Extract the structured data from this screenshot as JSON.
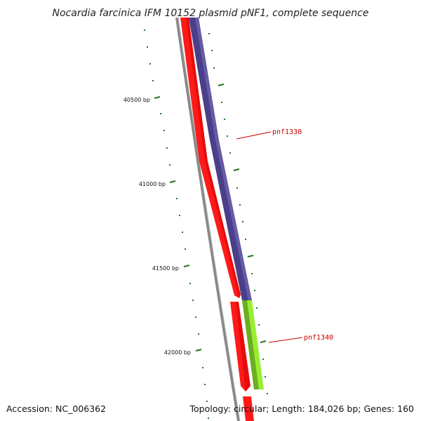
{
  "title": "Nocardia farcinica IFM 10152 plasmid pNF1, complete sequence",
  "footer": {
    "accession": "Accession: NC_006362",
    "summary": "Topology: circular; Length: 184,026 bp; Genes: 160"
  },
  "ticks": [
    {
      "position_bp": 40500,
      "label": "40500 bp"
    },
    {
      "position_bp": 41000,
      "label": "41000 bp"
    },
    {
      "position_bp": 41500,
      "label": "41500 bp"
    },
    {
      "position_bp": 42000,
      "label": "42000 bp"
    }
  ],
  "genes": [
    {
      "name": "pnf1330",
      "label": "pnf1330",
      "strand": "+",
      "color": "#4a3f8a"
    },
    {
      "name": "pnf1340",
      "label": "pnf1340",
      "strand": "+",
      "color": "#99ee33"
    }
  ],
  "colors": {
    "backbone": "#888888",
    "cds": "#ff1a1a",
    "tick": "#1f7a1f",
    "label_line": "#cc0000"
  }
}
